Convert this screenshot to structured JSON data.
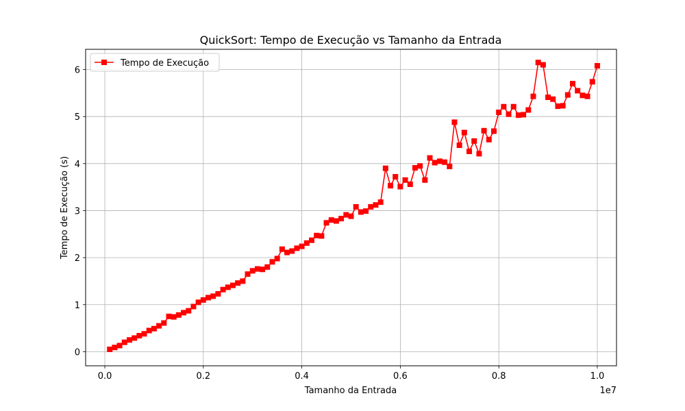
{
  "chart_data": {
    "type": "line",
    "title": "QuickSort: Tempo de Execução vs Tamanho da Entrada",
    "xlabel": "Tamanho da Entrada",
    "ylabel": "Tempo de Execução (s)",
    "x_offset_label": "1e7",
    "x_ticks": [
      0.0,
      0.2,
      0.4,
      0.6,
      0.8,
      1.0
    ],
    "x_tick_labels": [
      "0.0",
      "0.2",
      "0.4",
      "0.6",
      "0.8",
      "1.0"
    ],
    "y_ticks": [
      0,
      1,
      2,
      3,
      4,
      5,
      6
    ],
    "y_tick_labels": [
      "0",
      "1",
      "2",
      "3",
      "4",
      "5",
      "6"
    ],
    "grid": true,
    "legend_position": "top-left",
    "series": [
      {
        "name": "Tempo de Execução",
        "color": "#ff0000",
        "marker": "square",
        "x": [
          0.01,
          0.02,
          0.03,
          0.04,
          0.05,
          0.06,
          0.07,
          0.08,
          0.09,
          0.1,
          0.11,
          0.12,
          0.13,
          0.14,
          0.15,
          0.16,
          0.17,
          0.18,
          0.19,
          0.2,
          0.21,
          0.22,
          0.23,
          0.24,
          0.25,
          0.26,
          0.27,
          0.28,
          0.29,
          0.3,
          0.31,
          0.32,
          0.33,
          0.34,
          0.35,
          0.36,
          0.37,
          0.38,
          0.39,
          0.4,
          0.41,
          0.42,
          0.43,
          0.44,
          0.45,
          0.46,
          0.47,
          0.48,
          0.49,
          0.5,
          0.51,
          0.52,
          0.53,
          0.54,
          0.55,
          0.56,
          0.57,
          0.58,
          0.59,
          0.6,
          0.61,
          0.62,
          0.63,
          0.64,
          0.65,
          0.66,
          0.67,
          0.68,
          0.69,
          0.7,
          0.71,
          0.72,
          0.73,
          0.74,
          0.75,
          0.76,
          0.77,
          0.78,
          0.79,
          0.8,
          0.81,
          0.82,
          0.83,
          0.84,
          0.85,
          0.86,
          0.87,
          0.88,
          0.89,
          0.9,
          0.91,
          0.92,
          0.93,
          0.94,
          0.95,
          0.96,
          0.97,
          0.98,
          0.99,
          1.0
        ],
        "y": [
          0.05,
          0.09,
          0.13,
          0.2,
          0.25,
          0.29,
          0.34,
          0.38,
          0.45,
          0.49,
          0.55,
          0.61,
          0.75,
          0.74,
          0.78,
          0.83,
          0.87,
          0.96,
          1.05,
          1.1,
          1.15,
          1.18,
          1.23,
          1.32,
          1.37,
          1.41,
          1.46,
          1.5,
          1.65,
          1.72,
          1.76,
          1.75,
          1.8,
          1.91,
          1.98,
          2.18,
          2.11,
          2.14,
          2.2,
          2.24,
          2.31,
          2.37,
          2.47,
          2.46,
          2.74,
          2.8,
          2.78,
          2.83,
          2.91,
          2.88,
          3.08,
          2.97,
          2.99,
          3.08,
          3.12,
          3.18,
          3.9,
          3.53,
          3.72,
          3.51,
          3.65,
          3.56,
          3.91,
          3.95,
          3.65,
          4.12,
          4.02,
          4.05,
          4.03,
          3.94,
          4.88,
          4.39,
          4.66,
          4.26,
          4.48,
          4.21,
          4.7,
          4.51,
          4.69,
          5.09,
          5.21,
          5.05,
          5.21,
          5.03,
          5.04,
          5.14,
          5.43,
          6.15,
          6.1,
          5.41,
          5.37,
          5.22,
          5.23,
          5.46,
          5.7,
          5.55,
          5.45,
          5.43,
          5.74,
          6.08
        ]
      }
    ]
  }
}
